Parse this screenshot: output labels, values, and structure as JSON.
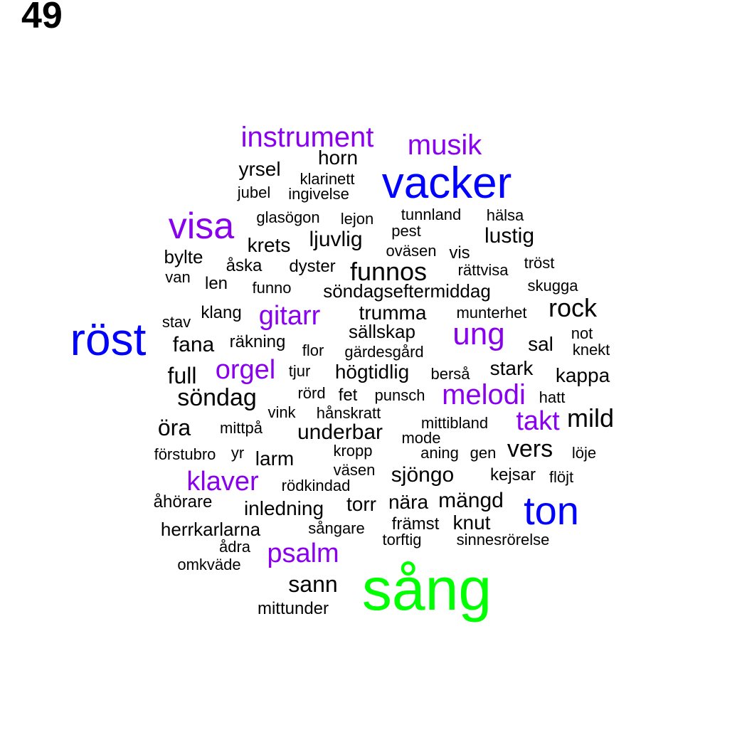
{
  "page_number": "49",
  "colors": {
    "tier1": "#00ff00",
    "tier2": "#0000ff",
    "tier3": "#8800ee",
    "tier4": "#000000"
  },
  "words": [
    {
      "text": "sång",
      "tier": 1
    },
    {
      "text": "vacker",
      "tier": 2
    },
    {
      "text": "röst",
      "tier": 2
    },
    {
      "text": "ton",
      "tier": 2
    },
    {
      "text": "instrument",
      "tier": 3
    },
    {
      "text": "musik",
      "tier": 3
    },
    {
      "text": "visa",
      "tier": 3
    },
    {
      "text": "gitarr",
      "tier": 3
    },
    {
      "text": "ung",
      "tier": 3
    },
    {
      "text": "orgel",
      "tier": 3
    },
    {
      "text": "melodi",
      "tier": 3
    },
    {
      "text": "takt",
      "tier": 3
    },
    {
      "text": "klaver",
      "tier": 3
    },
    {
      "text": "psalm",
      "tier": 3
    },
    {
      "text": "horn",
      "tier": 4
    },
    {
      "text": "yrsel",
      "tier": 4
    },
    {
      "text": "klarinett",
      "tier": 4
    },
    {
      "text": "jubel",
      "tier": 4
    },
    {
      "text": "ingivelse",
      "tier": 4
    },
    {
      "text": "glasögon",
      "tier": 4
    },
    {
      "text": "lejon",
      "tier": 4
    },
    {
      "text": "tunnland",
      "tier": 4
    },
    {
      "text": "hälsa",
      "tier": 4
    },
    {
      "text": "pest",
      "tier": 4
    },
    {
      "text": "lustig",
      "tier": 4
    },
    {
      "text": "krets",
      "tier": 4
    },
    {
      "text": "ljuvlig",
      "tier": 4
    },
    {
      "text": "oväsen",
      "tier": 4
    },
    {
      "text": "vis",
      "tier": 4
    },
    {
      "text": "bylte",
      "tier": 4
    },
    {
      "text": "åska",
      "tier": 4
    },
    {
      "text": "dyster",
      "tier": 4
    },
    {
      "text": "funnos",
      "tier": 4
    },
    {
      "text": "rättvisa",
      "tier": 4
    },
    {
      "text": "tröst",
      "tier": 4
    },
    {
      "text": "van",
      "tier": 4
    },
    {
      "text": "len",
      "tier": 4
    },
    {
      "text": "funno",
      "tier": 4
    },
    {
      "text": "söndagseftermiddag",
      "tier": 4
    },
    {
      "text": "skugga",
      "tier": 4
    },
    {
      "text": "stav",
      "tier": 4
    },
    {
      "text": "klang",
      "tier": 4
    },
    {
      "text": "trumma",
      "tier": 4
    },
    {
      "text": "munterhet",
      "tier": 4
    },
    {
      "text": "rock",
      "tier": 4
    },
    {
      "text": "sällskap",
      "tier": 4
    },
    {
      "text": "not",
      "tier": 4
    },
    {
      "text": "fana",
      "tier": 4
    },
    {
      "text": "räkning",
      "tier": 4
    },
    {
      "text": "flor",
      "tier": 4
    },
    {
      "text": "gärdesgård",
      "tier": 4
    },
    {
      "text": "sal",
      "tier": 4
    },
    {
      "text": "knekt",
      "tier": 4
    },
    {
      "text": "full",
      "tier": 4
    },
    {
      "text": "tjur",
      "tier": 4
    },
    {
      "text": "högtidlig",
      "tier": 4
    },
    {
      "text": "berså",
      "tier": 4
    },
    {
      "text": "stark",
      "tier": 4
    },
    {
      "text": "kappa",
      "tier": 4
    },
    {
      "text": "söndag",
      "tier": 4
    },
    {
      "text": "rörd",
      "tier": 4
    },
    {
      "text": "fet",
      "tier": 4
    },
    {
      "text": "punsch",
      "tier": 4
    },
    {
      "text": "hatt",
      "tier": 4
    },
    {
      "text": "vink",
      "tier": 4
    },
    {
      "text": "hånskratt",
      "tier": 4
    },
    {
      "text": "öra",
      "tier": 4
    },
    {
      "text": "mittpå",
      "tier": 4
    },
    {
      "text": "underbar",
      "tier": 4
    },
    {
      "text": "mittibland",
      "tier": 4
    },
    {
      "text": "mild",
      "tier": 4
    },
    {
      "text": "mode",
      "tier": 4
    },
    {
      "text": "förstubro",
      "tier": 4
    },
    {
      "text": "yr",
      "tier": 4
    },
    {
      "text": "larm",
      "tier": 4
    },
    {
      "text": "kropp",
      "tier": 4
    },
    {
      "text": "aning",
      "tier": 4
    },
    {
      "text": "gen",
      "tier": 4
    },
    {
      "text": "vers",
      "tier": 4
    },
    {
      "text": "löje",
      "tier": 4
    },
    {
      "text": "väsen",
      "tier": 4
    },
    {
      "text": "sjöngo",
      "tier": 4
    },
    {
      "text": "kejsar",
      "tier": 4
    },
    {
      "text": "flöjt",
      "tier": 4
    },
    {
      "text": "rödkindad",
      "tier": 4
    },
    {
      "text": "åhörare",
      "tier": 4
    },
    {
      "text": "inledning",
      "tier": 4
    },
    {
      "text": "torr",
      "tier": 4
    },
    {
      "text": "nära",
      "tier": 4
    },
    {
      "text": "mängd",
      "tier": 4
    },
    {
      "text": "herrkarlarna",
      "tier": 4
    },
    {
      "text": "sångare",
      "tier": 4
    },
    {
      "text": "främst",
      "tier": 4
    },
    {
      "text": "knut",
      "tier": 4
    },
    {
      "text": "ådra",
      "tier": 4
    },
    {
      "text": "torftig",
      "tier": 4
    },
    {
      "text": "sinnesrörelse",
      "tier": 4
    },
    {
      "text": "omkväde",
      "tier": 4
    },
    {
      "text": "sann",
      "tier": 4
    },
    {
      "text": "mittunder",
      "tier": 4
    }
  ]
}
